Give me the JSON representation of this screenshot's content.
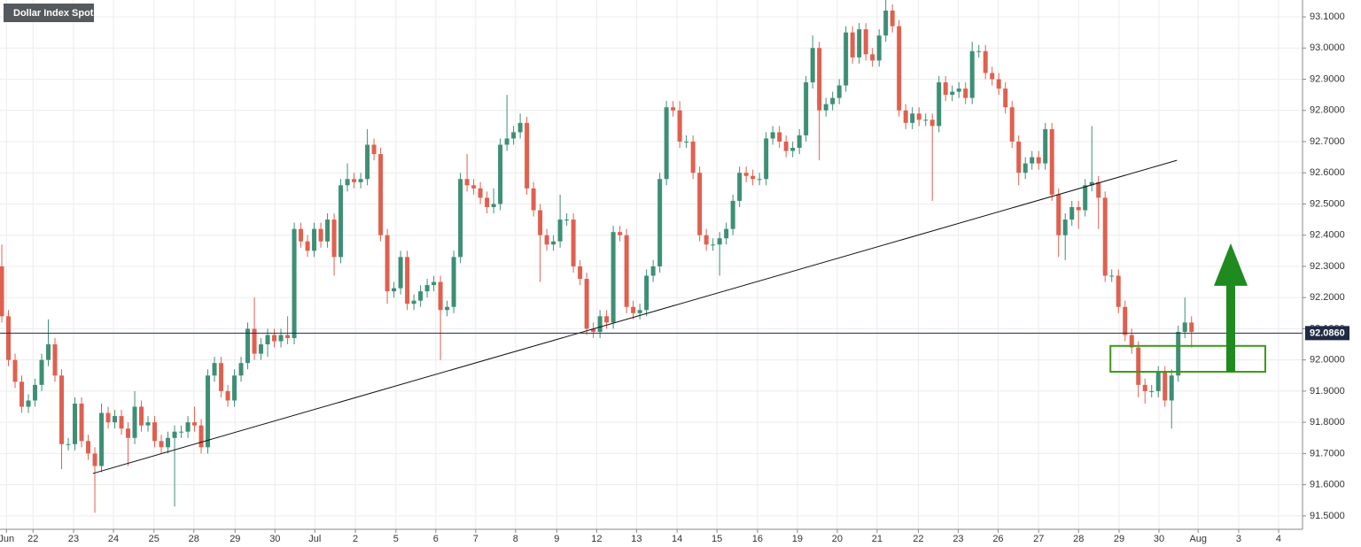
{
  "chart_data": {
    "type": "candlestick",
    "title": "Dollar Index Spot",
    "up_color": "#3d8f76",
    "down_color": "#e0604f",
    "grid": true,
    "categories": [
      null,
      null,
      null,
      null,
      null,
      null,
      null,
      null,
      null,
      null,
      null,
      null,
      null,
      null,
      null,
      null,
      null,
      null,
      null,
      null,
      null,
      null,
      null,
      null,
      null,
      null,
      null,
      null,
      null,
      null,
      null,
      null,
      null,
      null,
      null,
      null,
      null,
      null,
      null,
      null,
      null,
      null,
      null,
      null,
      null,
      null,
      null,
      null,
      null,
      null,
      null,
      null,
      null,
      null,
      null,
      null,
      null,
      null,
      null,
      null,
      null,
      null,
      null,
      null,
      null,
      null,
      null,
      null,
      null,
      null,
      null,
      null,
      null,
      null,
      null,
      null,
      null,
      null,
      null,
      null,
      null,
      null,
      null,
      null,
      null,
      null,
      null,
      null,
      null,
      null,
      null,
      null,
      null,
      null,
      null,
      null,
      null,
      null,
      null,
      null,
      null,
      null,
      null,
      null,
      null,
      null,
      null,
      null,
      null,
      null,
      null,
      null,
      null,
      null,
      null,
      null,
      null,
      null,
      null,
      null,
      null,
      null,
      null,
      null,
      null,
      null,
      null,
      null,
      null,
      null,
      null,
      null,
      null,
      null,
      null,
      null,
      null,
      null,
      null,
      null,
      null,
      null,
      null,
      null,
      null,
      null,
      null,
      null,
      null,
      null,
      null,
      null,
      null,
      null,
      null,
      null,
      null,
      null,
      null,
      null,
      null,
      null,
      null,
      null,
      null,
      null,
      null,
      null,
      null,
      null,
      null,
      null,
      null,
      null,
      null,
      null,
      null,
      null,
      null,
      null
    ],
    "open": [
      92.3,
      92.14,
      92.0,
      91.93,
      91.85,
      91.87,
      91.92,
      92.0,
      92.05,
      91.95,
      91.73,
      91.73,
      91.86,
      91.74,
      91.7,
      91.66,
      91.83,
      91.8,
      91.82,
      91.78,
      91.75,
      91.85,
      91.79,
      91.8,
      91.74,
      91.72,
      91.75,
      91.77,
      91.77,
      91.8,
      91.79,
      91.72,
      91.95,
      91.99,
      91.9,
      91.87,
      91.95,
      91.99,
      92.1,
      92.02,
      92.05,
      92.08,
      92.06,
      92.08,
      92.07,
      92.42,
      92.38,
      92.35,
      92.42,
      92.38,
      92.45,
      92.33,
      92.56,
      92.58,
      92.57,
      92.58,
      92.69,
      92.66,
      92.4,
      92.22,
      92.23,
      92.33,
      92.18,
      92.19,
      92.22,
      92.24,
      92.25,
      92.16,
      92.17,
      92.33,
      92.58,
      92.56,
      92.55,
      92.52,
      92.49,
      92.5,
      92.69,
      92.71,
      92.73,
      92.76,
      92.55,
      92.48,
      92.4,
      92.37,
      92.38,
      92.45,
      92.45,
      92.3,
      92.26,
      92.1,
      92.09,
      92.14,
      92.12,
      92.41,
      92.4,
      92.17,
      92.15,
      92.16,
      92.27,
      92.3,
      92.58,
      92.81,
      92.8,
      92.7,
      92.7,
      92.6,
      92.4,
      92.37,
      92.37,
      92.39,
      92.42,
      92.51,
      92.6,
      92.59,
      92.58,
      92.58,
      92.71,
      92.73,
      92.7,
      92.67,
      92.68,
      92.72,
      92.89,
      93.0,
      92.8,
      92.82,
      92.84,
      92.88,
      93.05,
      92.97,
      93.06,
      92.98,
      92.96,
      93.04,
      93.12,
      93.07,
      92.8,
      92.76,
      92.79,
      92.77,
      92.77,
      92.75,
      92.89,
      92.85,
      92.86,
      92.87,
      92.84,
      92.99,
      92.99,
      92.92,
      92.9,
      92.87,
      92.81,
      92.7,
      92.6,
      92.63,
      92.65,
      92.63,
      92.74,
      92.53,
      92.4,
      92.45,
      92.49,
      92.48,
      92.56,
      92.57,
      92.52,
      92.27,
      92.27,
      92.17,
      92.08,
      92.04,
      91.92,
      91.9,
      91.9,
      91.96,
      91.87,
      91.95,
      92.09,
      92.12
    ],
    "high": [
      92.37,
      92.16,
      92.02,
      91.95,
      91.89,
      91.94,
      92.02,
      92.13,
      92.07,
      91.97,
      91.75,
      91.88,
      91.88,
      91.76,
      91.72,
      91.86,
      91.85,
      91.84,
      91.84,
      91.8,
      91.9,
      91.87,
      91.82,
      91.82,
      91.76,
      91.77,
      91.79,
      91.79,
      91.82,
      91.85,
      91.81,
      91.97,
      92.01,
      92.01,
      91.92,
      91.97,
      92.01,
      92.12,
      92.2,
      92.07,
      92.1,
      92.1,
      92.1,
      92.14,
      92.44,
      92.44,
      92.4,
      92.44,
      92.44,
      92.47,
      92.47,
      92.58,
      92.63,
      92.6,
      92.6,
      92.74,
      92.71,
      92.68,
      92.42,
      92.25,
      92.35,
      92.35,
      92.21,
      92.24,
      92.26,
      92.27,
      92.27,
      92.19,
      92.35,
      92.6,
      92.66,
      92.58,
      92.57,
      92.54,
      92.55,
      92.71,
      92.85,
      92.75,
      92.79,
      92.78,
      92.57,
      92.5,
      92.42,
      92.4,
      92.53,
      92.47,
      92.47,
      92.32,
      92.28,
      92.12,
      92.16,
      92.16,
      92.43,
      92.43,
      92.42,
      92.19,
      92.18,
      92.29,
      92.32,
      92.6,
      92.83,
      92.83,
      92.83,
      92.72,
      92.72,
      92.62,
      92.42,
      92.39,
      92.41,
      92.44,
      92.53,
      92.62,
      92.62,
      92.61,
      92.6,
      92.73,
      92.75,
      92.75,
      92.72,
      92.7,
      92.74,
      92.91,
      93.04,
      93.02,
      92.84,
      92.86,
      92.9,
      93.07,
      93.07,
      93.08,
      93.08,
      93.0,
      93.06,
      93.16,
      93.14,
      93.09,
      92.82,
      92.81,
      92.81,
      92.79,
      92.79,
      92.91,
      92.91,
      92.88,
      92.89,
      92.89,
      93.02,
      93.01,
      93.01,
      92.94,
      92.92,
      92.89,
      92.83,
      92.72,
      92.65,
      92.67,
      92.67,
      92.76,
      92.76,
      92.55,
      92.47,
      92.51,
      92.51,
      92.58,
      92.75,
      92.59,
      92.54,
      92.29,
      92.29,
      92.19,
      92.1,
      92.06,
      91.94,
      91.92,
      91.98,
      91.98,
      91.97,
      92.11,
      92.2,
      92.14
    ],
    "low": [
      92.12,
      91.98,
      91.91,
      91.83,
      91.83,
      91.85,
      91.9,
      91.98,
      91.93,
      91.65,
      91.71,
      91.71,
      91.72,
      91.68,
      91.51,
      91.64,
      91.78,
      91.78,
      91.76,
      91.66,
      91.73,
      91.77,
      91.77,
      91.72,
      91.7,
      91.7,
      91.53,
      91.75,
      91.75,
      91.77,
      91.7,
      91.7,
      91.93,
      91.88,
      91.85,
      91.85,
      91.93,
      91.97,
      92.0,
      92.0,
      92.01,
      92.04,
      92.04,
      92.05,
      92.05,
      92.36,
      92.33,
      92.33,
      92.36,
      92.36,
      92.27,
      92.31,
      92.54,
      92.55,
      92.55,
      92.56,
      92.64,
      92.38,
      92.18,
      92.2,
      92.21,
      92.16,
      92.16,
      92.17,
      92.2,
      92.22,
      92.0,
      92.14,
      92.15,
      92.31,
      92.54,
      92.53,
      92.5,
      92.47,
      92.47,
      92.48,
      92.67,
      92.69,
      92.71,
      92.53,
      92.46,
      92.25,
      92.35,
      92.35,
      92.36,
      92.43,
      92.28,
      92.24,
      92.08,
      92.07,
      92.07,
      92.1,
      92.1,
      92.38,
      92.15,
      92.13,
      92.13,
      92.14,
      92.25,
      92.28,
      92.56,
      92.78,
      92.68,
      92.68,
      92.58,
      92.38,
      92.35,
      92.35,
      92.27,
      92.37,
      92.4,
      92.49,
      92.57,
      92.56,
      92.56,
      92.56,
      92.69,
      92.68,
      92.65,
      92.65,
      92.66,
      92.7,
      92.87,
      92.64,
      92.78,
      92.8,
      92.82,
      92.86,
      92.95,
      92.95,
      92.96,
      92.94,
      92.94,
      93.02,
      93.05,
      92.78,
      92.74,
      92.74,
      92.75,
      92.75,
      92.51,
      92.73,
      92.83,
      92.83,
      92.84,
      92.82,
      92.82,
      92.97,
      92.9,
      92.88,
      92.85,
      92.79,
      92.68,
      92.56,
      92.58,
      92.61,
      92.61,
      92.61,
      92.51,
      92.33,
      92.32,
      92.43,
      92.42,
      92.46,
      92.54,
      92.42,
      92.25,
      92.25,
      92.15,
      92.06,
      92.02,
      91.88,
      91.86,
      91.88,
      91.88,
      91.85,
      91.78,
      91.93,
      92.07,
      92.04
    ],
    "close": [
      92.14,
      92.0,
      91.93,
      91.85,
      91.87,
      91.92,
      92.0,
      92.05,
      91.95,
      91.73,
      91.73,
      91.86,
      91.74,
      91.7,
      91.66,
      91.83,
      91.8,
      91.82,
      91.78,
      91.75,
      91.85,
      91.79,
      91.8,
      91.74,
      91.72,
      91.75,
      91.77,
      91.77,
      91.8,
      91.79,
      91.72,
      91.95,
      91.99,
      91.9,
      91.87,
      91.95,
      91.99,
      92.1,
      92.02,
      92.05,
      92.08,
      92.06,
      92.08,
      92.07,
      92.42,
      92.38,
      92.35,
      92.42,
      92.38,
      92.45,
      92.33,
      92.56,
      92.58,
      92.57,
      92.58,
      92.69,
      92.66,
      92.4,
      92.22,
      92.23,
      92.33,
      92.18,
      92.19,
      92.22,
      92.24,
      92.25,
      92.16,
      92.17,
      92.33,
      92.58,
      92.56,
      92.55,
      92.52,
      92.49,
      92.5,
      92.69,
      92.71,
      92.73,
      92.76,
      92.55,
      92.48,
      92.4,
      92.37,
      92.38,
      92.45,
      92.45,
      92.3,
      92.26,
      92.1,
      92.09,
      92.14,
      92.12,
      92.41,
      92.4,
      92.17,
      92.15,
      92.16,
      92.27,
      92.3,
      92.58,
      92.81,
      92.8,
      92.7,
      92.7,
      92.6,
      92.4,
      92.37,
      92.37,
      92.39,
      92.42,
      92.51,
      92.6,
      92.59,
      92.58,
      92.58,
      92.71,
      92.73,
      92.7,
      92.67,
      92.68,
      92.72,
      92.89,
      93.0,
      92.8,
      92.82,
      92.84,
      92.88,
      93.05,
      92.97,
      93.06,
      92.98,
      92.96,
      93.04,
      93.12,
      93.07,
      92.8,
      92.76,
      92.79,
      92.77,
      92.77,
      92.75,
      92.89,
      92.85,
      92.86,
      92.87,
      92.84,
      92.99,
      92.99,
      92.92,
      92.9,
      92.87,
      92.81,
      92.7,
      92.6,
      92.63,
      92.65,
      92.63,
      92.74,
      92.53,
      92.4,
      92.45,
      92.49,
      92.48,
      92.56,
      92.57,
      92.52,
      92.27,
      92.27,
      92.17,
      92.08,
      92.04,
      91.92,
      91.9,
      91.9,
      91.96,
      91.87,
      91.95,
      92.09,
      92.12,
      92.09
    ],
    "xlim": [
      -0.27,
      195.7
    ],
    "xticks": [
      {
        "value": 0.7,
        "label": "Jun"
      },
      {
        "value": 4.7,
        "label": "22"
      },
      {
        "value": 10.8,
        "label": "23"
      },
      {
        "value": 16.8,
        "label": "24"
      },
      {
        "value": 22.9,
        "label": "25"
      },
      {
        "value": 28.9,
        "label": "28"
      },
      {
        "value": 35.1,
        "label": "29"
      },
      {
        "value": 41.1,
        "label": "30"
      },
      {
        "value": 47.1,
        "label": "Jul"
      },
      {
        "value": 53.2,
        "label": "2"
      },
      {
        "value": 59.3,
        "label": "5"
      },
      {
        "value": 65.3,
        "label": "6"
      },
      {
        "value": 71.3,
        "label": "7"
      },
      {
        "value": 77.3,
        "label": "8"
      },
      {
        "value": 83.5,
        "label": "9"
      },
      {
        "value": 89.5,
        "label": "12"
      },
      {
        "value": 95.5,
        "label": "13"
      },
      {
        "value": 101.6,
        "label": "14"
      },
      {
        "value": 107.6,
        "label": "15"
      },
      {
        "value": 113.7,
        "label": "16"
      },
      {
        "value": 119.7,
        "label": "19"
      },
      {
        "value": 125.7,
        "label": "20"
      },
      {
        "value": 131.7,
        "label": "21"
      },
      {
        "value": 137.9,
        "label": "22"
      },
      {
        "value": 143.9,
        "label": "23"
      },
      {
        "value": 149.9,
        "label": "26"
      },
      {
        "value": 156.0,
        "label": "27"
      },
      {
        "value": 162.0,
        "label": "28"
      },
      {
        "value": 168.1,
        "label": "29"
      },
      {
        "value": 174.1,
        "label": "30"
      },
      {
        "value": 180.0,
        "label": "Aug"
      },
      {
        "value": 186.1,
        "label": "3"
      },
      {
        "value": 192.1,
        "label": "4"
      }
    ],
    "ylim": [
      91.457,
      93.154
    ],
    "yticks": [
      {
        "value": 91.5,
        "label": "91.5000"
      },
      {
        "value": 91.6,
        "label": "91.6000"
      },
      {
        "value": 91.7,
        "label": "91.7000"
      },
      {
        "value": 91.8,
        "label": "91.8000"
      },
      {
        "value": 91.9,
        "label": "91.9000"
      },
      {
        "value": 92.0,
        "label": "92.0000"
      },
      {
        "value": 92.1,
        "label": "92.1000"
      },
      {
        "value": 92.2,
        "label": "92.2000"
      },
      {
        "value": 92.3,
        "label": "92.3000"
      },
      {
        "value": 92.4,
        "label": "92.4000"
      },
      {
        "value": 92.5,
        "label": "92.5000"
      },
      {
        "value": 92.6,
        "label": "92.6000"
      },
      {
        "value": 92.7,
        "label": "92.7000"
      },
      {
        "value": 92.8,
        "label": "92.8000"
      },
      {
        "value": 92.9,
        "label": "92.9000"
      },
      {
        "value": 93.0,
        "label": "93.0000"
      },
      {
        "value": 93.1,
        "label": "93.1000"
      }
    ],
    "last_price": {
      "value": 92.086,
      "label": "92.0860"
    },
    "trendline": {
      "x": [
        13.7,
        176.8
      ],
      "y": [
        91.636,
        92.64
      ],
      "color": "#111111"
    },
    "zone": {
      "x": [
        166.8,
        190.1
      ],
      "y": [
        91.962,
        92.045
      ],
      "color": "#3a9a1a"
    },
    "arrow": {
      "x": 184.9,
      "y": [
        91.962,
        92.374
      ],
      "color": "#1f8a1f"
    }
  }
}
